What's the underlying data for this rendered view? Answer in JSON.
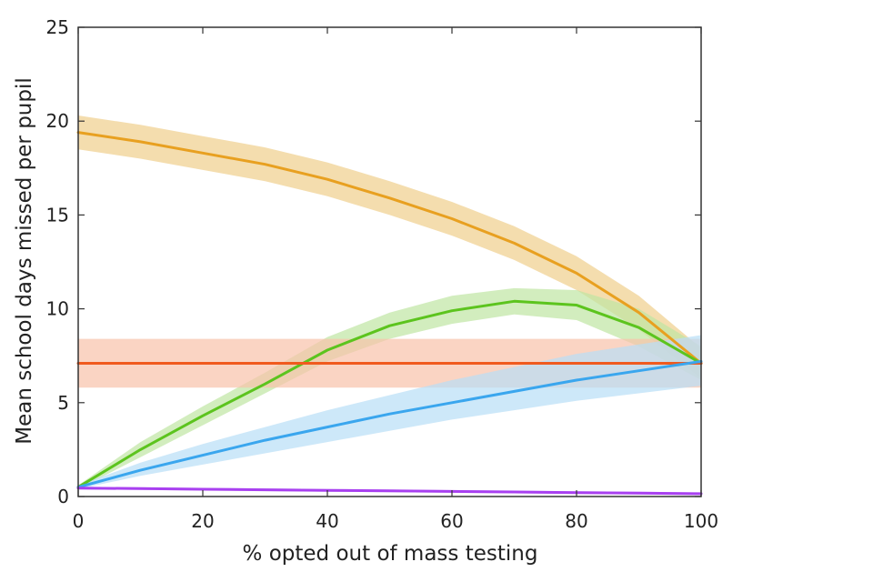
{
  "chart_data": {
    "type": "line",
    "title": "",
    "xlabel": "% opted out of mass testing",
    "ylabel": "Mean school days missed per pupil",
    "xlim": [
      0,
      100
    ],
    "ylim": [
      0,
      25
    ],
    "xticks": [
      0,
      20,
      40,
      60,
      80,
      100
    ],
    "yticks": [
      0,
      5,
      10,
      15,
      20,
      25
    ],
    "grid": false,
    "legend": "none",
    "x": [
      0,
      10,
      20,
      30,
      40,
      50,
      60,
      70,
      80,
      90,
      100
    ],
    "series": [
      {
        "name": "orange",
        "color": "#e8a020",
        "band_color": "#f0cf8c",
        "values": [
          19.4,
          18.9,
          18.3,
          17.7,
          16.9,
          15.9,
          14.8,
          13.5,
          11.9,
          9.8,
          7.1
        ],
        "lower": [
          18.5,
          18.0,
          17.4,
          16.8,
          16.0,
          15.0,
          13.9,
          12.6,
          11.0,
          8.9,
          6.3
        ],
        "upper": [
          20.3,
          19.8,
          19.2,
          18.6,
          17.8,
          16.8,
          15.7,
          14.4,
          12.8,
          10.7,
          7.9
        ]
      },
      {
        "name": "green",
        "color": "#5cc41e",
        "band_color": "#bfe6a2",
        "values": [
          0.5,
          2.5,
          4.3,
          6.0,
          7.8,
          9.1,
          9.9,
          10.4,
          10.2,
          9.0,
          7.1
        ],
        "lower": [
          0.4,
          2.1,
          3.8,
          5.5,
          7.2,
          8.4,
          9.2,
          9.7,
          9.4,
          8.0,
          6.2
        ],
        "upper": [
          0.6,
          2.9,
          4.8,
          6.6,
          8.5,
          9.8,
          10.7,
          11.1,
          11.0,
          10.0,
          8.0
        ]
      },
      {
        "name": "red",
        "color": "#f05a1e",
        "band_color": "#f8c2aa",
        "values": [
          7.1,
          7.1,
          7.1,
          7.1,
          7.1,
          7.1,
          7.1,
          7.1,
          7.1,
          7.1,
          7.1
        ],
        "lower": [
          5.8,
          5.8,
          5.8,
          5.8,
          5.8,
          5.8,
          5.8,
          5.8,
          5.8,
          5.8,
          5.8
        ],
        "upper": [
          8.4,
          8.4,
          8.4,
          8.4,
          8.4,
          8.4,
          8.4,
          8.4,
          8.4,
          8.4,
          8.4
        ]
      },
      {
        "name": "blue",
        "color": "#3aa6ee",
        "band_color": "#b8def6",
        "values": [
          0.5,
          1.4,
          2.2,
          3.0,
          3.7,
          4.4,
          5.0,
          5.6,
          6.2,
          6.7,
          7.2
        ],
        "lower": [
          0.4,
          1.1,
          1.7,
          2.3,
          2.9,
          3.5,
          4.1,
          4.6,
          5.1,
          5.5,
          5.9
        ],
        "upper": [
          0.6,
          1.8,
          2.8,
          3.7,
          4.6,
          5.4,
          6.2,
          6.9,
          7.6,
          8.1,
          8.6
        ]
      },
      {
        "name": "purple",
        "color": "#a840f0",
        "band_color": "#dcb8f6",
        "values": [
          0.45,
          0.42,
          0.39,
          0.36,
          0.33,
          0.3,
          0.27,
          0.24,
          0.21,
          0.18,
          0.15
        ],
        "lower": [
          0.38,
          0.35,
          0.32,
          0.29,
          0.26,
          0.23,
          0.2,
          0.17,
          0.14,
          0.11,
          0.08
        ],
        "upper": [
          0.52,
          0.49,
          0.46,
          0.43,
          0.4,
          0.37,
          0.34,
          0.31,
          0.28,
          0.25,
          0.22
        ]
      }
    ]
  }
}
